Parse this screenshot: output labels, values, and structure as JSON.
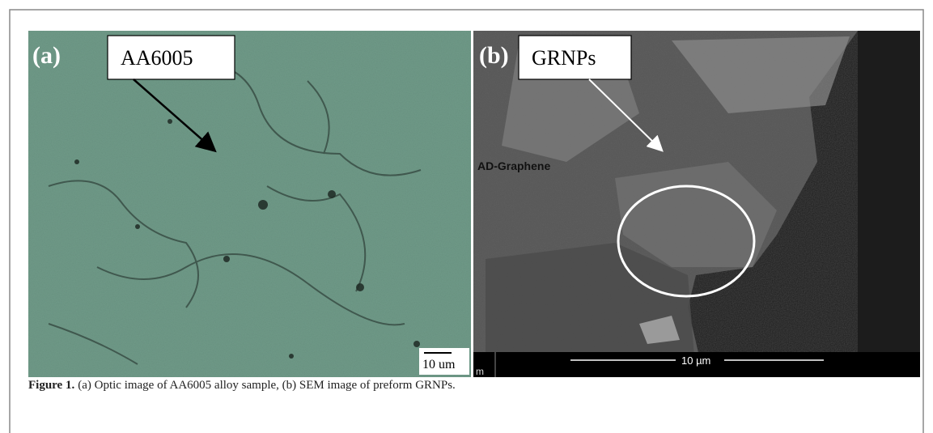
{
  "figure": {
    "panels": [
      {
        "label": "(a)",
        "callout": "AA6005",
        "scale_bar": "10 um"
      },
      {
        "label": "(b)",
        "callout": "GRNPs",
        "image_text": "AD-Graphene",
        "scale_bar": "10 µm",
        "scale_bar_prefix": "m"
      }
    ],
    "caption": {
      "label": "Figure 1.",
      "text": "(a) Optic image of AA6005 alloy sample, (b) SEM image of preform GRNPs."
    }
  }
}
